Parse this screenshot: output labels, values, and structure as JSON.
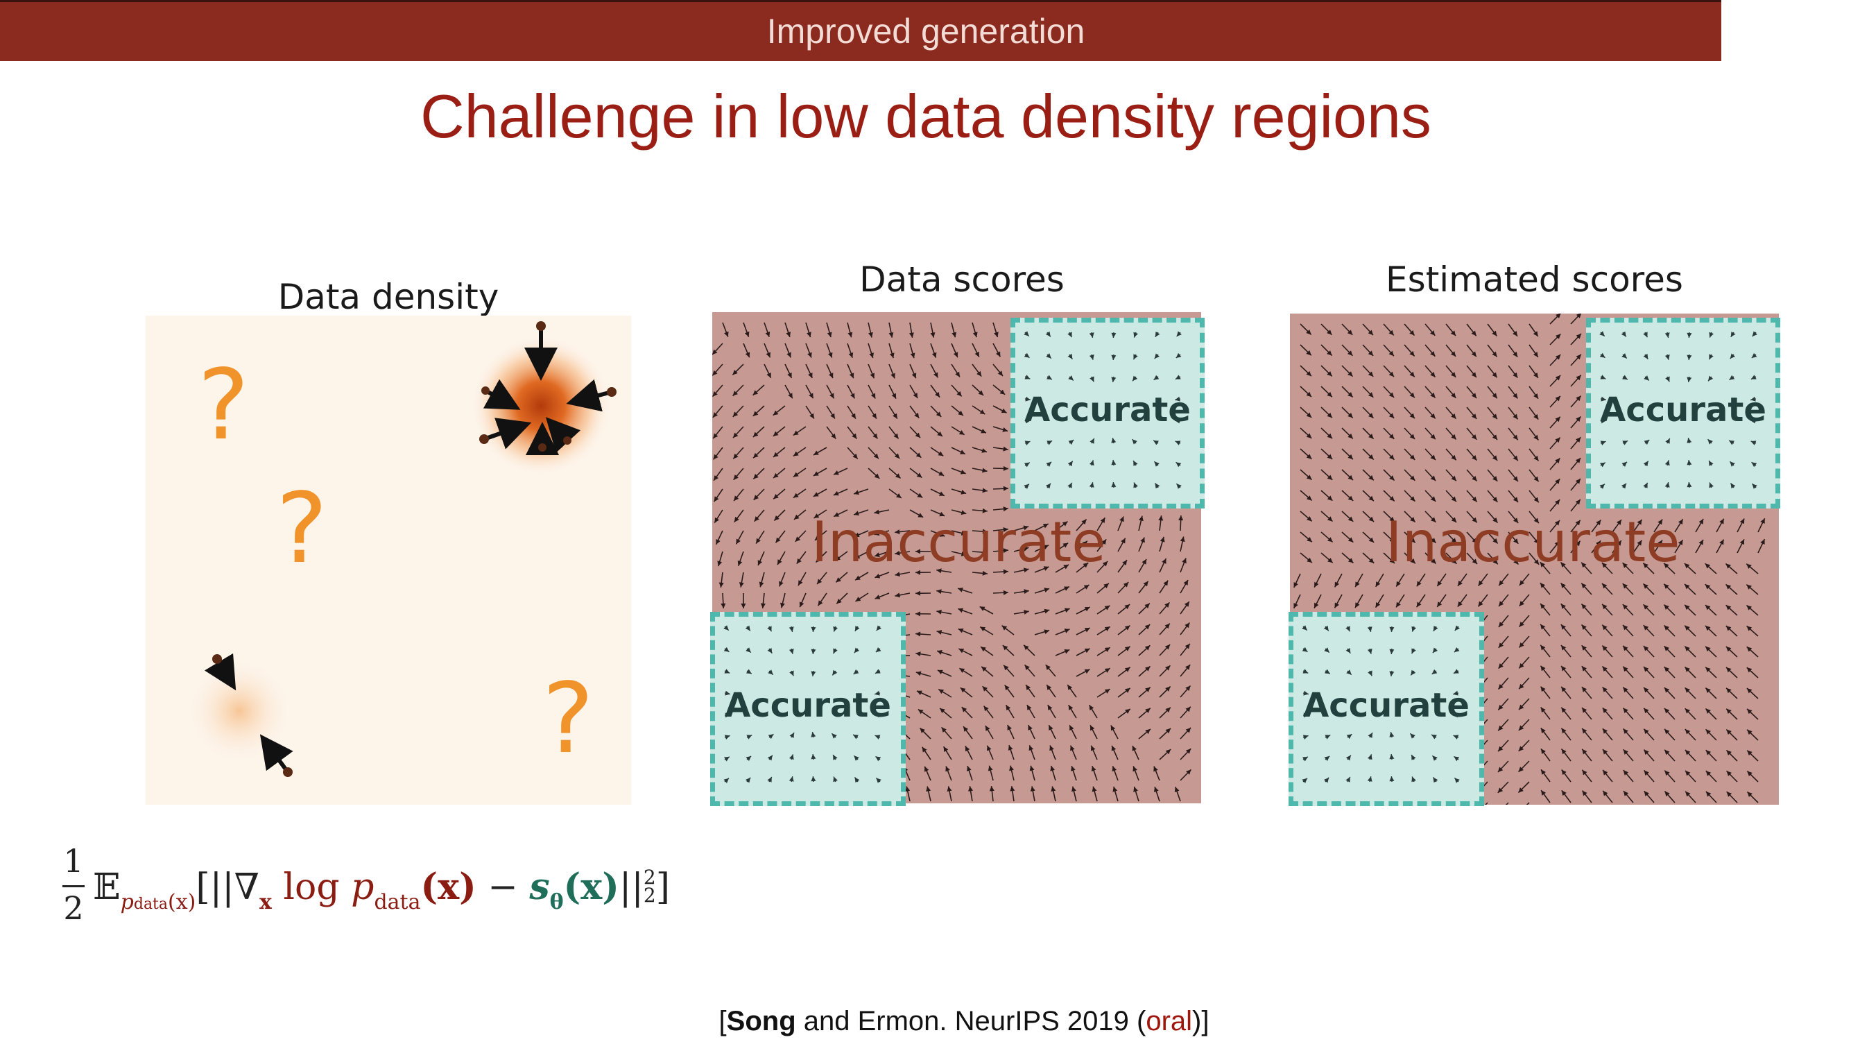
{
  "header": {
    "title": "Improved generation"
  },
  "slide": {
    "title": "Challenge in low data density regions"
  },
  "panels": {
    "density": {
      "title": "Data density",
      "question_mark": "?"
    },
    "data_scores": {
      "title": "Data scores",
      "accurate_label": "Accurate",
      "inaccurate_label": "Inaccurate"
    },
    "estimated_scores": {
      "title": "Estimated scores",
      "accurate_label": "Accurate",
      "inaccurate_label": "Inaccurate"
    }
  },
  "formula": {
    "frac_num": "1",
    "frac_den": "2",
    "expectation": "𝔼",
    "expectation_sub": "p",
    "expectation_sub_sub": "data",
    "expectation_sub_arg": "(x)",
    "open": "[||∇",
    "grad_sub": "x",
    "log": " log ",
    "p": "p",
    "p_sub": "data",
    "p_arg": "(x)",
    "minus": " − ",
    "s": "s",
    "s_sub": "θ",
    "s_arg": "(x)",
    "close": "||",
    "norm_sup": "2",
    "norm_sub": "2",
    "end": "]"
  },
  "citation": {
    "open": "[",
    "author_bold": "Song",
    "rest": " and Ermon. NeurIPS 2019 (",
    "oral": "oral",
    "close": ")]"
  },
  "colors": {
    "header_bg": "#8b2a1f",
    "title": "#9a1e14",
    "field": "#c69a93",
    "accurate_fill": "#cde9e4",
    "accurate_border": "#4fb8ad",
    "question_mark": "#f0932a",
    "density_peak": "#c5420f"
  }
}
